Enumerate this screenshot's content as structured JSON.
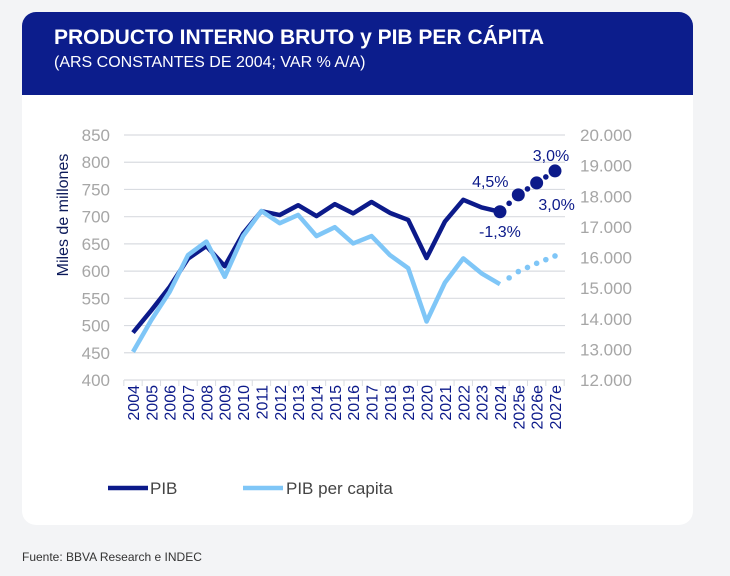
{
  "header": {
    "title": "PRODUCTO INTERNO BRUTO y PIB PER CÁPITA",
    "subtitle": "(ARS CONSTANTES DE 2004; VAR % A/A)"
  },
  "source": "Fuente: BBVA Research e INDEC",
  "colors": {
    "header": "#0c1d8c",
    "pib": "#0c1a8a",
    "pib_per_capita": "#7fc6f7",
    "axis_text": "#a6a6a6"
  },
  "chart_data": {
    "type": "line",
    "ylabel": "Miles de millones",
    "ylim": [
      400,
      850
    ],
    "y2lim": [
      12000,
      20000
    ],
    "yticks": [
      "400",
      "450",
      "500",
      "550",
      "600",
      "650",
      "700",
      "750",
      "800",
      "850"
    ],
    "y2ticks": [
      "12.000",
      "13.000",
      "14.000",
      "15.000",
      "16.000",
      "17.000",
      "18.000",
      "19.000",
      "20.000"
    ],
    "grid": true,
    "legend_placement": "bottom",
    "categories": [
      "2004",
      "2005",
      "2006",
      "2007",
      "2008",
      "2009",
      "2010",
      "2011",
      "2012",
      "2013",
      "2014",
      "2015",
      "2016",
      "2017",
      "2018",
      "2019",
      "2020",
      "2021",
      "2022",
      "2023",
      "2024",
      "2025e",
      "2026e",
      "2027e"
    ],
    "forecast_from": "2024",
    "series": [
      {
        "name": "PIB",
        "axis": "left",
        "values": [
          487,
          528,
          571,
          623,
          646,
          609,
          669,
          710,
          703,
          721,
          701,
          723,
          706,
          727,
          707,
          694,
          624,
          691,
          731,
          717,
          709,
          740,
          762,
          784
        ]
      },
      {
        "name": "PIB per capita",
        "axis": "right",
        "values": [
          12920,
          13960,
          14880,
          16080,
          16520,
          15370,
          16700,
          17520,
          17120,
          17390,
          16700,
          16990,
          16460,
          16700,
          16080,
          15650,
          13910,
          15180,
          15970,
          15480,
          15130,
          15540,
          15810,
          16050
        ]
      }
    ],
    "annotations": [
      {
        "text": "-1,3%",
        "category": "2024"
      },
      {
        "text": "4,5%",
        "category": "2025e"
      },
      {
        "text": "3,0%",
        "category": "2026e"
      },
      {
        "text": "3,0%",
        "category": "2027e"
      }
    ]
  }
}
